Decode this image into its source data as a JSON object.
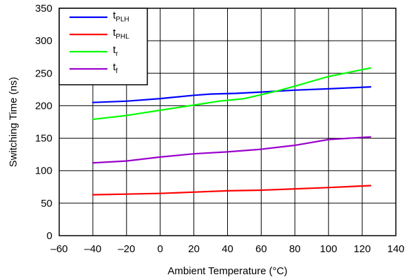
{
  "chart_data": {
    "type": "line",
    "xlabel": "Ambient Temperature (°C)",
    "ylabel": "Switching Time (ns)",
    "xlim": [
      -60,
      140
    ],
    "ylim": [
      0,
      350
    ],
    "x_ticks": [
      "–60",
      "–40",
      "–20",
      "0",
      "20",
      "40",
      "60",
      "80",
      "100",
      "120",
      "140"
    ],
    "y_ticks": [
      "0",
      "50",
      "100",
      "150",
      "200",
      "250",
      "300",
      "350"
    ],
    "grid": true,
    "legend_position": "top-left",
    "series": [
      {
        "name": "tPLH",
        "label_main": "t",
        "label_sub": "PLH",
        "color": "#0000ff",
        "x": [
          -40,
          -20,
          0,
          20,
          30,
          45,
          60,
          80,
          100,
          125
        ],
        "y": [
          205,
          207,
          211,
          216,
          218,
          219,
          221,
          224,
          226,
          229
        ]
      },
      {
        "name": "tPHL",
        "label_main": "t",
        "label_sub": "PHL",
        "color": "#ff0000",
        "x": [
          -40,
          -20,
          0,
          20,
          40,
          60,
          80,
          100,
          125
        ],
        "y": [
          63,
          64,
          65,
          67,
          69,
          70,
          72,
          74,
          77
        ]
      },
      {
        "name": "tr",
        "label_main": "t",
        "label_sub": "r",
        "color": "#00ff00",
        "x": [
          -40,
          -20,
          0,
          20,
          35,
          50,
          60,
          70,
          80,
          100,
          125
        ],
        "y": [
          179,
          185,
          193,
          201,
          207,
          211,
          217,
          223,
          230,
          245,
          258
        ]
      },
      {
        "name": "tf",
        "label_main": "t",
        "label_sub": "f",
        "color": "#9900cc",
        "x": [
          -40,
          -20,
          0,
          20,
          40,
          60,
          80,
          100,
          125
        ],
        "y": [
          112,
          115,
          121,
          126,
          129,
          133,
          139,
          148,
          152
        ]
      }
    ]
  }
}
